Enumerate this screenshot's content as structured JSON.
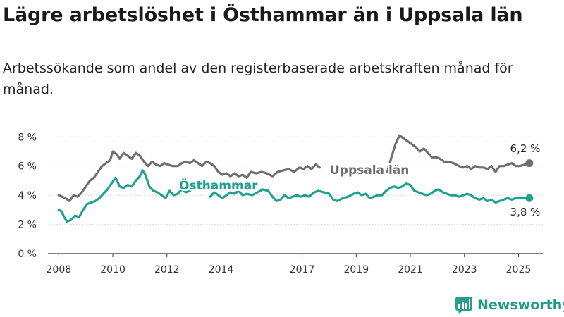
{
  "header": {
    "title": "Lägre arbetslöshet i Östhammar än i Uppsala län",
    "subtitle": "Arbetssökande som andel av den registerbaserade arbetskraften månad för månad."
  },
  "brand": {
    "name": "Newsworthy",
    "icon": "newsworthy-logo-icon",
    "color": "#2a9d8f"
  },
  "chart_data": {
    "type": "line",
    "title": "Lägre arbetslöshet i Östhammar än i Uppsala län",
    "subtitle": "Arbetssökande som andel av den registerbaserade arbetskraften månad för månad.",
    "xlabel": "",
    "ylabel": "",
    "xlim": [
      2007.6,
      2025.9
    ],
    "ylim": [
      0,
      8.4
    ],
    "y_ticks": [
      0,
      2,
      4,
      6,
      8
    ],
    "y_tick_labels": [
      "0 %",
      "2 %",
      "4 %",
      "6 %",
      "8 %"
    ],
    "x_ticks": [
      2008,
      2010,
      2012,
      2014,
      2017,
      2019,
      2021,
      2023,
      2025
    ],
    "x_tick_labels": [
      "2008",
      "2010",
      "2012",
      "2014",
      "2017",
      "2019",
      "2021",
      "2023",
      "2025"
    ],
    "grid": "horizontal",
    "legend": "direct-labels",
    "series": [
      {
        "name": "Uppsala län",
        "color": "#6e6e73",
        "end_label": "6,2 %",
        "segments": [
          [
            [
              2008.0,
              4.0
            ],
            [
              2008.25,
              3.8
            ],
            [
              2008.4,
              3.6
            ],
            [
              2008.55,
              4.0
            ],
            [
              2008.7,
              3.9
            ],
            [
              2008.85,
              4.2
            ],
            [
              2009.0,
              4.6
            ],
            [
              2009.15,
              5.0
            ],
            [
              2009.3,
              5.2
            ],
            [
              2009.45,
              5.6
            ],
            [
              2009.6,
              6.0
            ],
            [
              2009.75,
              6.2
            ],
            [
              2009.9,
              6.4
            ],
            [
              2010.0,
              7.0
            ],
            [
              2010.15,
              6.8
            ],
            [
              2010.25,
              6.5
            ],
            [
              2010.4,
              6.9
            ],
            [
              2010.55,
              6.7
            ],
            [
              2010.7,
              6.5
            ],
            [
              2010.85,
              6.9
            ],
            [
              2011.0,
              6.7
            ],
            [
              2011.15,
              6.3
            ],
            [
              2011.3,
              6.0
            ],
            [
              2011.45,
              6.3
            ],
            [
              2011.6,
              6.1
            ],
            [
              2011.75,
              6.0
            ],
            [
              2011.9,
              6.2
            ],
            [
              2012.05,
              6.1
            ],
            [
              2012.2,
              6.0
            ],
            [
              2012.4,
              6.0
            ],
            [
              2012.55,
              6.2
            ],
            [
              2012.7,
              6.3
            ],
            [
              2012.85,
              6.2
            ],
            [
              2013.0,
              6.4
            ],
            [
              2013.15,
              6.2
            ],
            [
              2013.3,
              6.0
            ],
            [
              2013.45,
              6.3
            ],
            [
              2013.6,
              6.2
            ],
            [
              2013.75,
              6.0
            ],
            [
              2013.9,
              5.6
            ],
            [
              2014.05,
              5.4
            ],
            [
              2014.2,
              5.5
            ],
            [
              2014.35,
              5.3
            ],
            [
              2014.5,
              5.5
            ],
            [
              2014.65,
              5.3
            ],
            [
              2014.8,
              5.4
            ],
            [
              2014.95,
              5.2
            ],
            [
              2015.1,
              5.6
            ],
            [
              2015.3,
              5.5
            ],
            [
              2015.5,
              5.6
            ],
            [
              2015.7,
              5.5
            ],
            [
              2015.9,
              5.3
            ],
            [
              2016.1,
              5.6
            ],
            [
              2016.3,
              5.7
            ],
            [
              2016.5,
              5.8
            ],
            [
              2016.7,
              5.6
            ],
            [
              2016.9,
              5.9
            ],
            [
              2017.05,
              5.8
            ],
            [
              2017.2,
              6.0
            ],
            [
              2017.35,
              5.8
            ],
            [
              2017.5,
              6.1
            ],
            [
              2017.65,
              5.9
            ]
          ],
          [
            [
              2020.15,
              5.6
            ],
            [
              2020.3,
              6.6
            ],
            [
              2020.45,
              7.5
            ],
            [
              2020.6,
              8.1
            ],
            [
              2020.75,
              7.9
            ],
            [
              2020.9,
              7.7
            ],
            [
              2021.05,
              7.5
            ],
            [
              2021.2,
              7.3
            ],
            [
              2021.35,
              7.0
            ],
            [
              2021.5,
              7.2
            ],
            [
              2021.65,
              6.9
            ],
            [
              2021.8,
              6.6
            ],
            [
              2021.95,
              6.6
            ],
            [
              2022.1,
              6.5
            ],
            [
              2022.25,
              6.3
            ],
            [
              2022.4,
              6.3
            ],
            [
              2022.6,
              6.2
            ],
            [
              2022.8,
              6.0
            ],
            [
              2022.95,
              5.9
            ],
            [
              2023.1,
              6.0
            ],
            [
              2023.25,
              5.8
            ],
            [
              2023.4,
              6.0
            ],
            [
              2023.55,
              5.9
            ],
            [
              2023.7,
              5.9
            ],
            [
              2023.85,
              5.8
            ],
            [
              2024.0,
              6.0
            ],
            [
              2024.15,
              5.6
            ],
            [
              2024.3,
              6.0
            ],
            [
              2024.45,
              6.0
            ],
            [
              2024.6,
              6.1
            ],
            [
              2024.75,
              6.2
            ],
            [
              2024.9,
              6.0
            ],
            [
              2025.05,
              6.0
            ],
            [
              2025.4,
              6.2
            ]
          ]
        ]
      },
      {
        "name": "Östhammar",
        "color": "#1fa191",
        "end_label": "3,8 %",
        "segments": [
          [
            [
              2008.0,
              3.0
            ],
            [
              2008.1,
              2.9
            ],
            [
              2008.2,
              2.5
            ],
            [
              2008.3,
              2.2
            ],
            [
              2008.45,
              2.3
            ],
            [
              2008.6,
              2.6
            ],
            [
              2008.75,
              2.5
            ],
            [
              2008.9,
              3.0
            ],
            [
              2009.05,
              3.4
            ],
            [
              2009.2,
              3.5
            ],
            [
              2009.35,
              3.6
            ],
            [
              2009.5,
              3.8
            ],
            [
              2009.65,
              4.1
            ],
            [
              2009.8,
              4.4
            ],
            [
              2009.95,
              4.8
            ],
            [
              2010.1,
              5.2
            ],
            [
              2010.25,
              4.6
            ],
            [
              2010.4,
              4.5
            ],
            [
              2010.55,
              4.7
            ],
            [
              2010.7,
              4.6
            ],
            [
              2010.85,
              5.0
            ],
            [
              2011.0,
              5.3
            ],
            [
              2011.1,
              5.7
            ],
            [
              2011.2,
              5.4
            ],
            [
              2011.35,
              4.6
            ],
            [
              2011.5,
              4.3
            ],
            [
              2011.65,
              4.2
            ],
            [
              2011.8,
              4.0
            ],
            [
              2011.95,
              3.8
            ],
            [
              2012.1,
              4.3
            ],
            [
              2012.25,
              4.0
            ],
            [
              2012.4,
              4.1
            ],
            [
              2012.55,
              4.4
            ],
            [
              2012.7,
              4.2
            ],
            [
              2012.85,
              4.3
            ]
          ],
          [
            [
              2013.6,
              3.9
            ],
            [
              2013.75,
              4.2
            ],
            [
              2013.9,
              4.0
            ],
            [
              2014.05,
              3.8
            ],
            [
              2014.2,
              4.0
            ],
            [
              2014.35,
              4.2
            ],
            [
              2014.5,
              4.1
            ],
            [
              2014.65,
              4.3
            ],
            [
              2014.8,
              4.0
            ],
            [
              2014.95,
              4.1
            ],
            [
              2015.15,
              4.0
            ],
            [
              2015.35,
              4.2
            ],
            [
              2015.55,
              4.4
            ],
            [
              2015.75,
              4.3
            ],
            [
              2015.9,
              3.9
            ],
            [
              2016.05,
              3.6
            ],
            [
              2016.2,
              3.7
            ],
            [
              2016.35,
              4.0
            ],
            [
              2016.5,
              3.8
            ],
            [
              2016.65,
              3.9
            ],
            [
              2016.8,
              4.0
            ],
            [
              2016.95,
              3.9
            ],
            [
              2017.1,
              4.0
            ],
            [
              2017.25,
              3.9
            ],
            [
              2017.45,
              4.2
            ],
            [
              2017.6,
              4.3
            ],
            [
              2017.8,
              4.2
            ],
            [
              2018.0,
              4.1
            ],
            [
              2018.15,
              3.7
            ],
            [
              2018.3,
              3.6
            ],
            [
              2018.5,
              3.8
            ],
            [
              2018.7,
              3.9
            ],
            [
              2018.9,
              4.1
            ],
            [
              2019.05,
              4.2
            ],
            [
              2019.2,
              4.0
            ],
            [
              2019.35,
              4.1
            ],
            [
              2019.5,
              3.8
            ],
            [
              2019.65,
              3.9
            ],
            [
              2019.8,
              4.0
            ],
            [
              2019.95,
              4.0
            ],
            [
              2020.1,
              4.3
            ],
            [
              2020.25,
              4.5
            ],
            [
              2020.4,
              4.6
            ],
            [
              2020.55,
              4.5
            ],
            [
              2020.7,
              4.6
            ],
            [
              2020.85,
              4.8
            ],
            [
              2021.0,
              4.7
            ],
            [
              2021.15,
              4.3
            ],
            [
              2021.3,
              4.2
            ],
            [
              2021.45,
              4.1
            ],
            [
              2021.6,
              4.0
            ],
            [
              2021.75,
              4.1
            ],
            [
              2021.9,
              4.3
            ],
            [
              2022.05,
              4.4
            ],
            [
              2022.2,
              4.2
            ],
            [
              2022.35,
              4.1
            ],
            [
              2022.5,
              4.0
            ],
            [
              2022.65,
              4.0
            ],
            [
              2022.8,
              3.9
            ],
            [
              2022.95,
              4.0
            ],
            [
              2023.1,
              4.1
            ],
            [
              2023.25,
              4.0
            ],
            [
              2023.4,
              3.8
            ],
            [
              2023.55,
              3.7
            ],
            [
              2023.7,
              3.8
            ],
            [
              2023.85,
              3.6
            ],
            [
              2024.0,
              3.7
            ],
            [
              2024.15,
              3.5
            ],
            [
              2024.3,
              3.6
            ],
            [
              2024.45,
              3.7
            ],
            [
              2024.6,
              3.8
            ],
            [
              2024.75,
              3.7
            ],
            [
              2024.9,
              3.8
            ],
            [
              2025.05,
              3.8
            ],
            [
              2025.4,
              3.8
            ]
          ]
        ]
      }
    ]
  }
}
